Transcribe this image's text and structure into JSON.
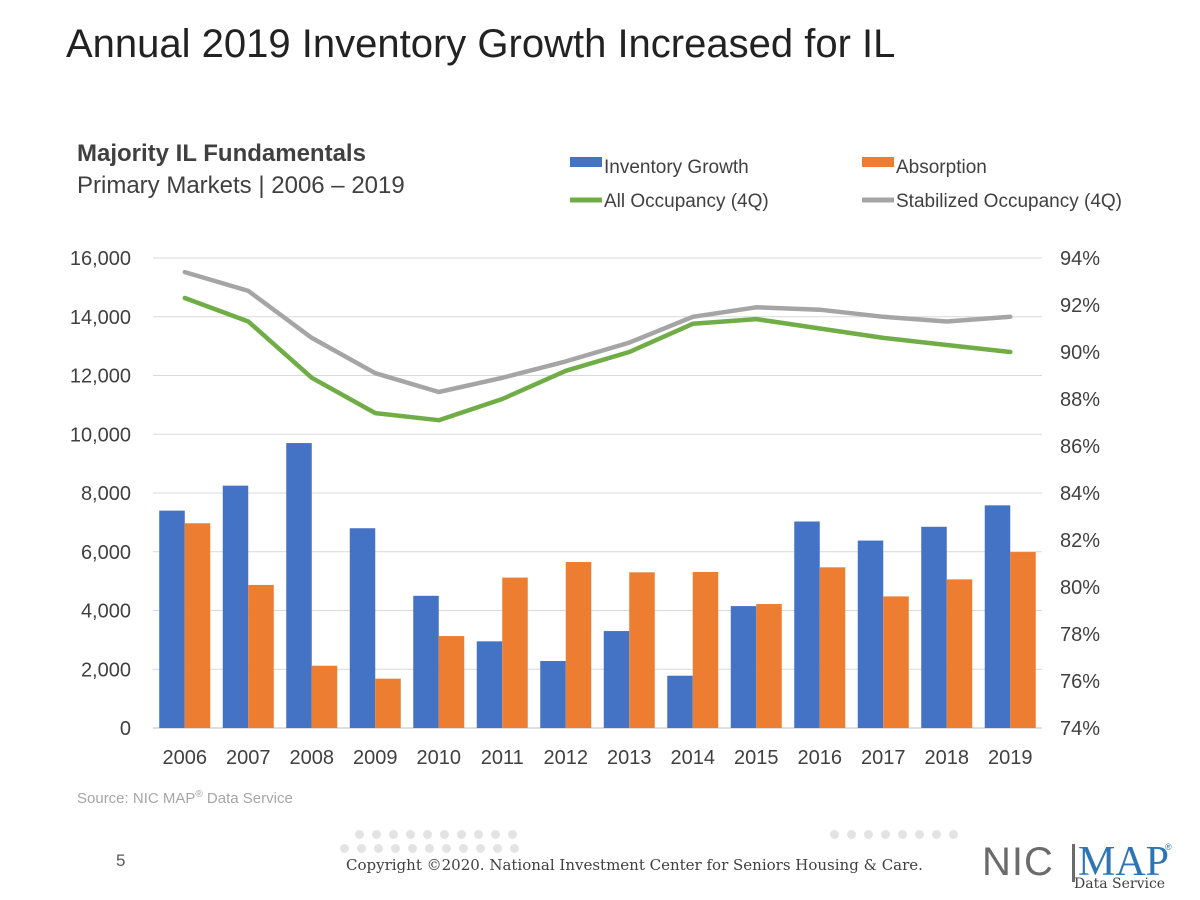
{
  "slide": {
    "title": "Annual 2019 Inventory Growth Increased for IL",
    "page_number": "5",
    "copyright": "Copyright ©2020. National Investment Center for Seniors Housing & Care.",
    "source_prefix": "Source: NIC MAP",
    "source_reg": "®",
    "source_suffix": " Data Service"
  },
  "logo": {
    "nic": "NIC",
    "map": "MAP",
    "reg": "®",
    "sub": "Data Service"
  },
  "colors": {
    "inventory": "#4472c4",
    "absorption": "#ed7d31",
    "all_occupancy": "#70ad47",
    "stabilized_occupancy": "#a5a5a5",
    "grid": "#d9d9d9",
    "axis_text": "#404040"
  },
  "chart_data": {
    "type": "bar",
    "title": "Majority IL Fundamentals",
    "subtitle": "Primary Markets | 2006 – 2019",
    "categories": [
      "2006",
      "2007",
      "2008",
      "2009",
      "2010",
      "2011",
      "2012",
      "2013",
      "2014",
      "2015",
      "2016",
      "2017",
      "2018",
      "2019"
    ],
    "series": [
      {
        "name": "Inventory Growth",
        "type": "bar",
        "axis": "left",
        "color": "#4472c4",
        "values": [
          7400,
          8250,
          9700,
          6800,
          4500,
          2950,
          2280,
          3300,
          1780,
          4150,
          7030,
          6380,
          6850,
          7580
        ]
      },
      {
        "name": "Absorption",
        "type": "bar",
        "axis": "left",
        "color": "#ed7d31",
        "values": [
          6970,
          4870,
          2120,
          1680,
          3130,
          5120,
          5650,
          5300,
          5310,
          4220,
          5470,
          4480,
          5060,
          5990
        ]
      },
      {
        "name": "All Occupancy (4Q)",
        "type": "line",
        "axis": "right",
        "color": "#70ad47",
        "values": [
          92.3,
          91.3,
          88.9,
          87.4,
          87.1,
          88.0,
          89.2,
          90.0,
          91.2,
          91.4,
          91.0,
          90.6,
          90.3,
          90.0
        ]
      },
      {
        "name": "Stabilized Occupancy (4Q)",
        "type": "line",
        "axis": "right",
        "color": "#a5a5a5",
        "values": [
          93.4,
          92.6,
          90.6,
          89.1,
          88.3,
          88.9,
          89.6,
          90.4,
          91.5,
          91.9,
          91.8,
          91.5,
          91.3,
          91.5
        ]
      }
    ],
    "legend": [
      {
        "label": "Inventory Growth",
        "kind": "box",
        "color": "#4472c4"
      },
      {
        "label": "Absorption",
        "kind": "box",
        "color": "#ed7d31"
      },
      {
        "label": "All Occupancy (4Q)",
        "kind": "line",
        "color": "#70ad47"
      },
      {
        "label": "Stabilized Occupancy (4Q)",
        "kind": "line",
        "color": "#a5a5a5"
      }
    ],
    "legend_position": "top-right",
    "y_left": {
      "min": 0,
      "max": 16000,
      "step": 2000,
      "ticks": [
        "0",
        "2,000",
        "4,000",
        "6,000",
        "8,000",
        "10,000",
        "12,000",
        "14,000",
        "16,000"
      ]
    },
    "y_right": {
      "min": 74,
      "max": 94,
      "step": 2,
      "ticks": [
        "74%",
        "76%",
        "78%",
        "80%",
        "82%",
        "84%",
        "86%",
        "88%",
        "90%",
        "92%",
        "94%"
      ]
    },
    "grid": true
  }
}
